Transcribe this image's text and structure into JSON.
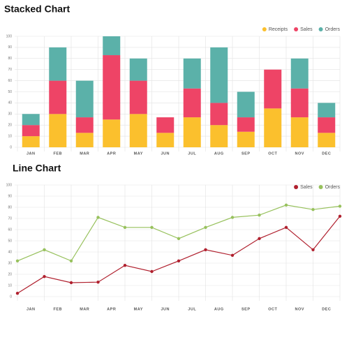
{
  "chart_data": [
    {
      "type": "stacked_bar",
      "title": "Stacked Chart",
      "categories": [
        "JAN",
        "FEB",
        "MAR",
        "APR",
        "MAY",
        "JUN",
        "JUL",
        "AUG",
        "SEP",
        "OCT",
        "NOV",
        "DEC"
      ],
      "series": [
        {
          "name": "Receipts",
          "color": "#fbc02d",
          "values": [
            10,
            30,
            13,
            25,
            30,
            13,
            27,
            20,
            14,
            35,
            27,
            13
          ]
        },
        {
          "name": "Sales",
          "color": "#ee4466",
          "values": [
            10,
            30,
            14,
            58,
            30,
            14,
            26,
            20,
            13,
            35,
            26,
            14
          ]
        },
        {
          "name": "Orders",
          "color": "#5bb1a9",
          "values": [
            10,
            30,
            33,
            17,
            20,
            0,
            27,
            50,
            23,
            0,
            27,
            13
          ]
        }
      ],
      "ylim": [
        0,
        100
      ],
      "yticks": [
        0,
        10,
        20,
        30,
        40,
        50,
        60,
        70,
        80,
        90,
        100
      ],
      "grid": true,
      "legend": "top-right"
    },
    {
      "type": "line",
      "title": "Line Chart",
      "categories": [
        "JAN",
        "FEB",
        "MAR",
        "APR",
        "MAY",
        "JUN",
        "JUL",
        "AUG",
        "SEP",
        "OCT",
        "NOV",
        "DEC",
        null
      ],
      "series": [
        {
          "name": "Sales",
          "color": "#b0202e",
          "values": [
            3,
            18,
            12.5,
            13,
            28,
            22.5,
            32,
            42,
            37,
            52,
            62,
            42,
            72
          ]
        },
        {
          "name": "Orders",
          "color": "#97c15c",
          "values": [
            32,
            42,
            32,
            71,
            62,
            62,
            52,
            62,
            71,
            73,
            82,
            78,
            81
          ]
        }
      ],
      "ylim": [
        0,
        100
      ],
      "yticks": [
        0,
        10,
        20,
        30,
        40,
        50,
        60,
        70,
        80,
        90,
        100
      ],
      "grid": true,
      "legend": "top-right"
    }
  ]
}
